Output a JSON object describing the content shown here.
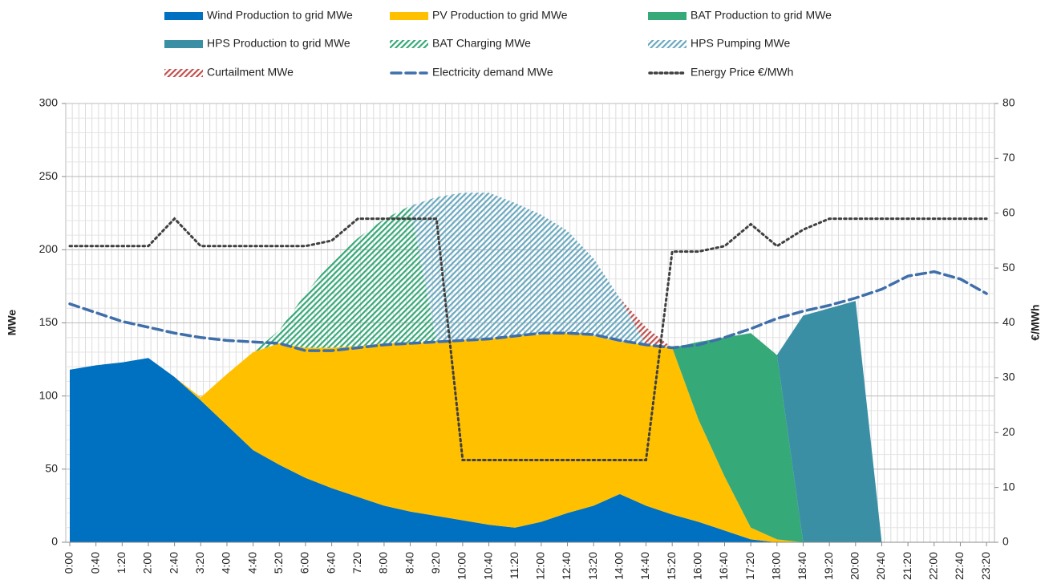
{
  "chart_data": {
    "type": "stacked-area",
    "categories": [
      "0:00",
      "0:40",
      "1:20",
      "2:00",
      "2:40",
      "3:20",
      "4:00",
      "4:40",
      "5:20",
      "6:00",
      "6:40",
      "7:20",
      "8:00",
      "8:40",
      "9:20",
      "10:00",
      "10:40",
      "11:20",
      "12:00",
      "12:40",
      "13:20",
      "14:00",
      "14:40",
      "15:20",
      "16:00",
      "16:40",
      "17:20",
      "18:00",
      "18:40",
      "19:20",
      "20:00",
      "20:40",
      "21:20",
      "22:00",
      "22:40",
      "23:20"
    ],
    "ylabel": "MWe",
    "y2label": "€/MWh",
    "ylim": [
      0,
      300
    ],
    "yticks": [
      0,
      50,
      100,
      150,
      200,
      250,
      300
    ],
    "y2lim": [
      0,
      80
    ],
    "y2ticks": [
      0,
      10,
      20,
      30,
      40,
      50,
      60,
      70,
      80
    ],
    "grid": true,
    "series": [
      {
        "name": "Wind Production to grid MWe",
        "color": "#0070c0",
        "style": "fill",
        "stack": true,
        "values": [
          118,
          121,
          123,
          126,
          113,
          97,
          80,
          63,
          53,
          44,
          37,
          31,
          25,
          21,
          18,
          15,
          12,
          10,
          14,
          20,
          25,
          33,
          25,
          19,
          14,
          8,
          2,
          0,
          0,
          0,
          0,
          0,
          0,
          0,
          0,
          0
        ]
      },
      {
        "name": "PV Production to grid MWe",
        "color": "#ffc000",
        "style": "fill",
        "stack": true,
        "values": [
          0,
          0,
          0,
          0,
          0,
          2,
          35,
          67,
          83,
          89,
          96,
          103,
          111,
          115,
          119,
          123,
          127,
          131,
          128,
          123,
          116,
          104,
          110,
          114,
          70,
          37,
          8,
          2,
          0,
          0,
          0,
          0,
          0,
          0,
          0,
          0
        ]
      },
      {
        "name": "BAT Production to grid MWe",
        "color": "#36a978",
        "style": "fill",
        "stack": true,
        "values": [
          0,
          0,
          0,
          0,
          0,
          0,
          0,
          0,
          0,
          0,
          0,
          0,
          0,
          0,
          0,
          0,
          0,
          0,
          0,
          0,
          0,
          0,
          0,
          0,
          53,
          95,
          133,
          126,
          0,
          0,
          0,
          0,
          0,
          0,
          0,
          0
        ]
      },
      {
        "name": "HPS Production to grid MWe",
        "color": "#3a8fa5",
        "style": "fill",
        "stack": true,
        "values": [
          0,
          0,
          0,
          0,
          0,
          0,
          0,
          0,
          0,
          0,
          0,
          0,
          0,
          0,
          0,
          0,
          0,
          0,
          0,
          0,
          0,
          0,
          0,
          0,
          0,
          0,
          0,
          0,
          155,
          160,
          165,
          0,
          0,
          0,
          0,
          0
        ]
      },
      {
        "name": "BAT Charging MWe",
        "color": "#36a978",
        "style": "hatch",
        "stack": true,
        "values": [
          0,
          0,
          0,
          0,
          0,
          0,
          0,
          0,
          9,
          37,
          59,
          74,
          85,
          94,
          0,
          0,
          0,
          0,
          0,
          0,
          0,
          0,
          0,
          0,
          0,
          0,
          0,
          0,
          0,
          0,
          0,
          0,
          0,
          0,
          0,
          0
        ]
      },
      {
        "name": "HPS Pumping MWe",
        "color": "#6aa9c0",
        "style": "hatch",
        "stack": true,
        "values": [
          0,
          0,
          0,
          0,
          0,
          0,
          0,
          0,
          0,
          0,
          0,
          0,
          0,
          0,
          99,
          101,
          100,
          91,
          82,
          70,
          53,
          30,
          0,
          0,
          0,
          0,
          0,
          0,
          0,
          0,
          0,
          0,
          0,
          0,
          0,
          0
        ]
      },
      {
        "name": "Curtailment MWe",
        "color": "#c0504d",
        "style": "hatch",
        "stack": true,
        "values": [
          0,
          0,
          0,
          0,
          0,
          0,
          0,
          0,
          0,
          0,
          0,
          0,
          0,
          0,
          0,
          0,
          0,
          0,
          0,
          0,
          0,
          0,
          12,
          0,
          0,
          0,
          0,
          0,
          0,
          0,
          0,
          0,
          0,
          0,
          0,
          0
        ]
      },
      {
        "name": "Electricity demand MWe",
        "color": "#3f6faa",
        "style": "dashed",
        "values": [
          163,
          157,
          151,
          147,
          143,
          140,
          138,
          137,
          136,
          131,
          131,
          133,
          135,
          136,
          137,
          138,
          139,
          141,
          143,
          143,
          142,
          138,
          135,
          133,
          135,
          140,
          146,
          153,
          158,
          162,
          167,
          173,
          182,
          185,
          180,
          170
        ]
      },
      {
        "name": "Energy Price €/MWh",
        "color": "#404040",
        "style": "dotted",
        "axis": "y2",
        "values": [
          54,
          54,
          54,
          54,
          59,
          54,
          54,
          54,
          54,
          54,
          55,
          59,
          59,
          59,
          59,
          15,
          15,
          15,
          15,
          15,
          15,
          15,
          15,
          53,
          53,
          54,
          58,
          54,
          57,
          59,
          59,
          59,
          59,
          59,
          59,
          59
        ]
      }
    ]
  }
}
